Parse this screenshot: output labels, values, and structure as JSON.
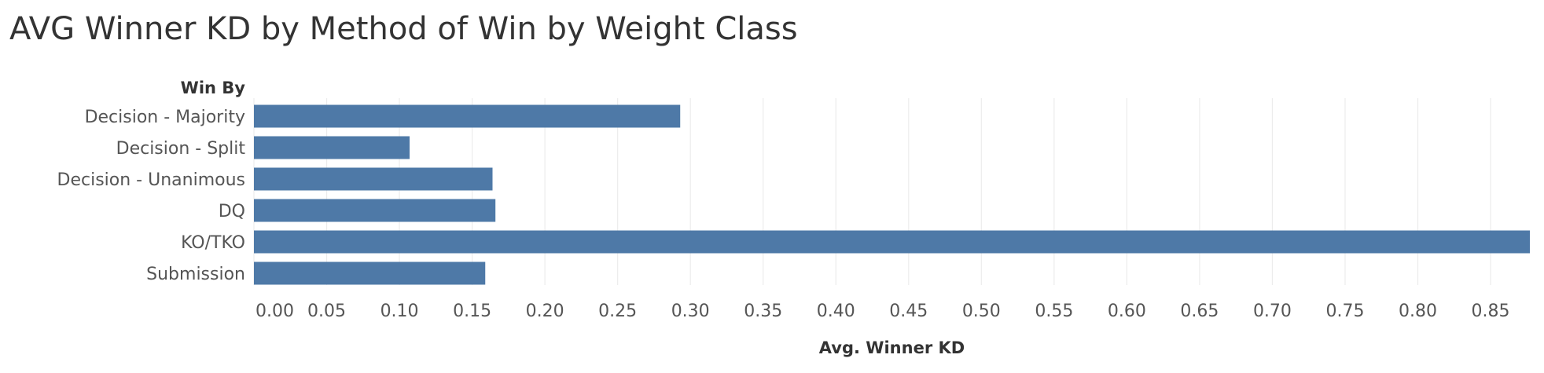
{
  "chart_data": {
    "type": "bar",
    "orientation": "horizontal",
    "title": "AVG Winner KD by Method of Win by Weight Class",
    "row_header": "Win By",
    "xlabel": "Avg. Winner KD",
    "categories": [
      "Decision - Majority",
      "Decision - Split",
      "Decision - Unanimous",
      "DQ",
      "KO/TKO",
      "Submission"
    ],
    "values": [
      0.293,
      0.107,
      0.164,
      0.166,
      0.877,
      0.159
    ],
    "xlim": [
      0,
      0.877
    ],
    "ticks": [
      "0.00",
      "0.05",
      "0.10",
      "0.15",
      "0.20",
      "0.25",
      "0.30",
      "0.35",
      "0.40",
      "0.45",
      "0.50",
      "0.55",
      "0.60",
      "0.65",
      "0.70",
      "0.75",
      "0.80",
      "0.85"
    ],
    "grid": true,
    "bar_color": "#4e79a7"
  }
}
